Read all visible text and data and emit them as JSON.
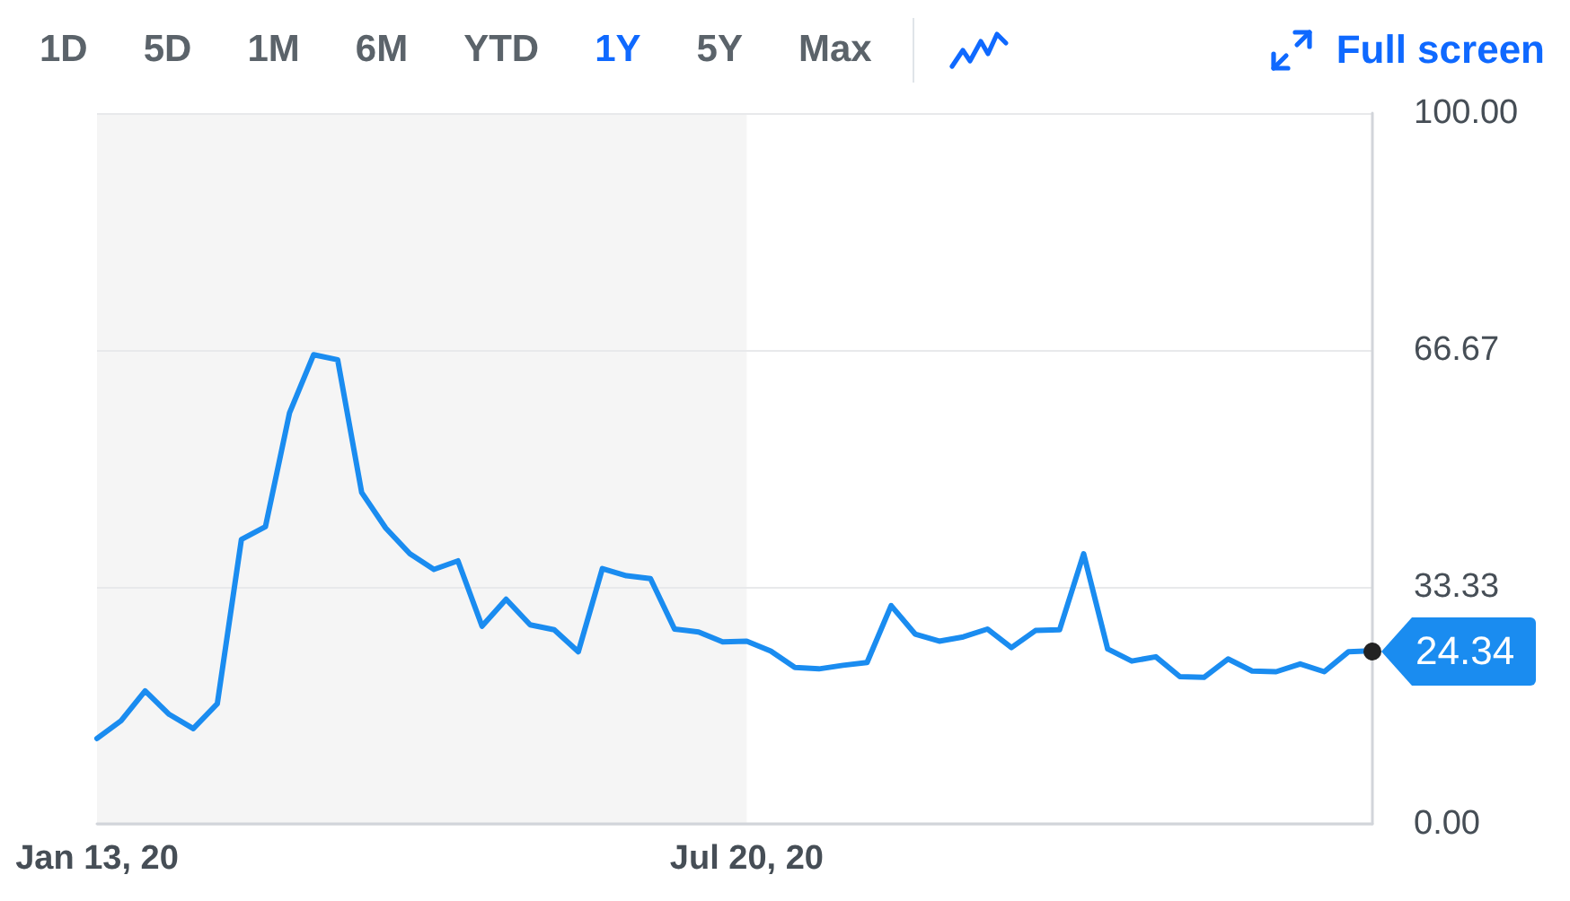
{
  "chart_data": {
    "type": "line",
    "x": [
      "2020-01-13",
      "2020-01-20",
      "2020-01-27",
      "2020-02-03",
      "2020-02-10",
      "2020-02-17",
      "2020-02-24",
      "2020-03-02",
      "2020-03-09",
      "2020-03-16",
      "2020-03-23",
      "2020-03-30",
      "2020-04-06",
      "2020-04-13",
      "2020-04-20",
      "2020-04-27",
      "2020-05-04",
      "2020-05-11",
      "2020-05-18",
      "2020-05-25",
      "2020-06-01",
      "2020-06-08",
      "2020-06-15",
      "2020-06-22",
      "2020-06-29",
      "2020-07-06",
      "2020-07-13",
      "2020-07-20",
      "2020-07-27",
      "2020-08-03",
      "2020-08-10",
      "2020-08-17",
      "2020-08-24",
      "2020-08-31",
      "2020-09-07",
      "2020-09-14",
      "2020-09-21",
      "2020-09-28",
      "2020-10-05",
      "2020-10-12",
      "2020-10-19",
      "2020-10-26",
      "2020-11-02",
      "2020-11-09",
      "2020-11-16",
      "2020-11-23",
      "2020-11-30",
      "2020-12-07",
      "2020-12-14",
      "2020-12-21",
      "2020-12-28",
      "2021-01-04",
      "2021-01-11",
      "2021-01-18"
    ],
    "values": [
      12.0,
      14.5,
      18.7,
      15.4,
      13.4,
      16.9,
      40.0,
      41.8,
      57.8,
      66.0,
      65.3,
      46.6,
      41.6,
      38.0,
      35.8,
      37.0,
      27.8,
      31.6,
      28.0,
      27.3,
      24.2,
      35.9,
      34.9,
      34.5,
      27.4,
      27.0,
      25.6,
      25.7,
      24.3,
      22.0,
      21.8,
      22.3,
      22.7,
      30.7,
      26.7,
      25.7,
      26.3,
      27.4,
      24.8,
      27.2,
      27.3,
      38.0,
      24.6,
      22.9,
      23.5,
      20.7,
      20.6,
      23.2,
      21.5,
      21.4,
      22.5,
      21.4,
      24.2,
      24.34
    ],
    "color": "#1a8cf0",
    "xlim": [
      "2020-01-13",
      "2021-01-18"
    ],
    "xticks": [
      {
        "value": "2020-01-13",
        "label": "Jan 13, 20"
      },
      {
        "value": "2020-07-20",
        "label": "Jul 20, 20"
      }
    ],
    "ylim": [
      0,
      100
    ],
    "yticks": [
      {
        "value": 0,
        "label": "0.00"
      },
      33.33,
      66.67,
      {
        "value": 100,
        "label": "100.00"
      }
    ],
    "grid": "y",
    "bands": [
      {
        "axis": "x",
        "from": "2020-01-13",
        "to": "2020-07-20",
        "color": "#f5f5f5"
      }
    ],
    "annotations": [
      "1D",
      "5D",
      "1M",
      "6M",
      "YTD",
      "1Y",
      "5Y",
      "Max",
      "Full screen",
      {
        "text": "24.34",
        "x": "2021-01-18",
        "y": 24.34
      }
    ]
  }
}
